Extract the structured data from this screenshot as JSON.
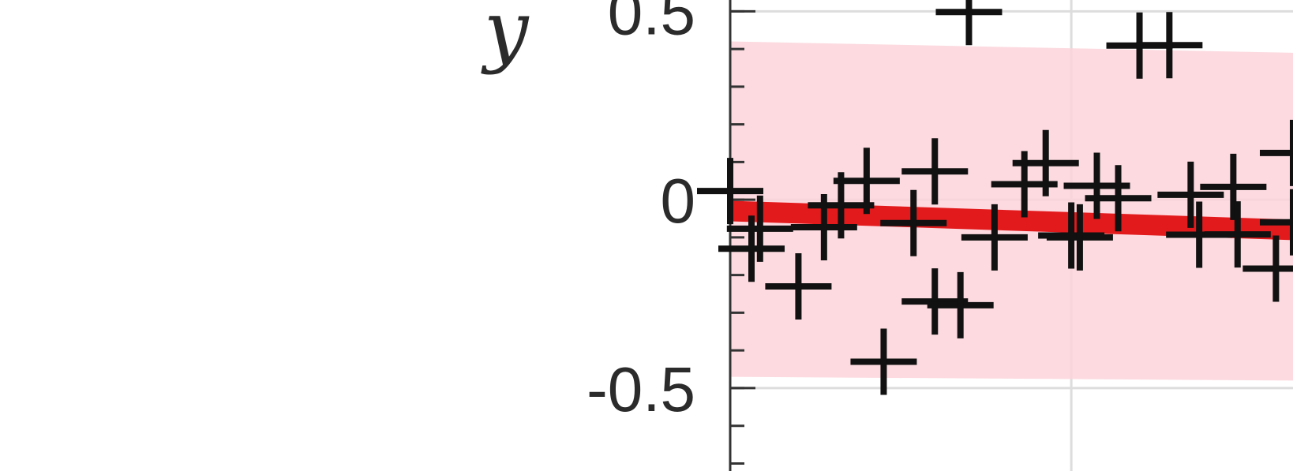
{
  "chart_data": {
    "type": "scatter",
    "title": "",
    "xlabel": "",
    "ylabel": "y",
    "ylim": [
      -0.72,
      0.53
    ],
    "xlim": [
      0,
      0.66
    ],
    "y_ticks": [
      -0.5,
      0,
      0.5
    ],
    "y_tick_labels": [
      "-0.5",
      "0",
      "0.5"
    ],
    "grid": true,
    "x_gridlines": [
      0.4
    ],
    "colors": {
      "points": "#111111",
      "fit_line": "#e31a1c",
      "confidence_band": "#fcd3db",
      "axis": "#333333",
      "grid": "#dddddd"
    },
    "series": [
      {
        "type": "scatter",
        "marker": "plus",
        "x": [
          0.0,
          0.025,
          0.035,
          0.08,
          0.13,
          0.11,
          0.16,
          0.18,
          0.215,
          0.24,
          0.24,
          0.27,
          0.28,
          0.31,
          0.37,
          0.345,
          0.4,
          0.43,
          0.41,
          0.455,
          0.48,
          0.515,
          0.54,
          0.55,
          0.59,
          0.595,
          0.64,
          0.66,
          0.66
        ],
        "y": [
          0.023,
          -0.13,
          -0.077,
          -0.23,
          -0.015,
          -0.073,
          0.05,
          -0.43,
          -0.062,
          0.075,
          -0.27,
          -0.28,
          0.498,
          -0.1,
          0.097,
          0.041,
          -0.095,
          0.037,
          -0.1,
          0.004,
          0.409,
          0.41,
          0.013,
          -0.093,
          0.034,
          -0.092,
          -0.183,
          0.124,
          -0.06
        ]
      }
    ],
    "fit_line": {
      "x": [
        0,
        0.66
      ],
      "y": [
        -0.03,
        -0.08
      ]
    },
    "confidence_band": {
      "x": [
        0,
        0.66
      ],
      "upper": [
        0.42,
        0.39
      ],
      "lower": [
        -0.47,
        -0.48
      ]
    }
  }
}
